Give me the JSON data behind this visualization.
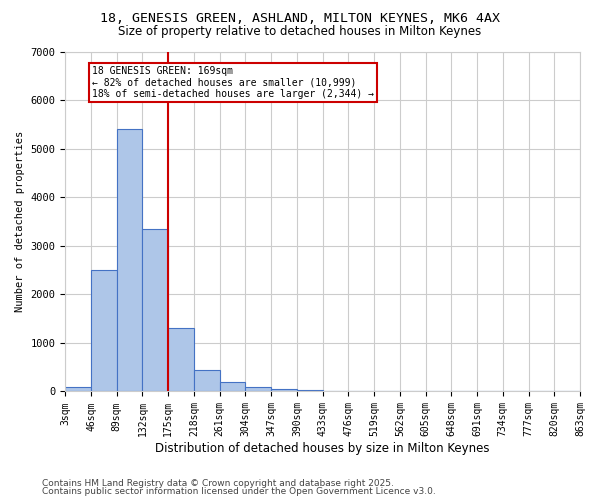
{
  "title_line1": "18, GENESIS GREEN, ASHLAND, MILTON KEYNES, MK6 4AX",
  "title_line2": "Size of property relative to detached houses in Milton Keynes",
  "xlabel": "Distribution of detached houses by size in Milton Keynes",
  "ylabel": "Number of detached properties",
  "bin_edges": [
    3,
    46,
    89,
    132,
    175,
    218,
    261,
    304,
    347,
    390,
    433,
    476,
    519,
    562,
    605,
    648,
    691,
    734,
    777,
    820,
    863
  ],
  "bar_heights": [
    100,
    2500,
    5400,
    3350,
    1300,
    450,
    200,
    100,
    50,
    30,
    0,
    0,
    0,
    0,
    0,
    0,
    0,
    0,
    0,
    0
  ],
  "bar_color": "#aec6e8",
  "bar_edge_color": "#4472c4",
  "vline_x": 175,
  "vline_color": "#cc0000",
  "ylim": [
    0,
    7000
  ],
  "annotation_title": "18 GENESIS GREEN: 169sqm",
  "annotation_line2": "← 82% of detached houses are smaller (10,999)",
  "annotation_line3": "18% of semi-detached houses are larger (2,344) →",
  "annotation_box_color": "#cc0000",
  "footnote_line1": "Contains HM Land Registry data © Crown copyright and database right 2025.",
  "footnote_line2": "Contains public sector information licensed under the Open Government Licence v3.0.",
  "background_color": "#ffffff",
  "grid_color": "#cccccc"
}
